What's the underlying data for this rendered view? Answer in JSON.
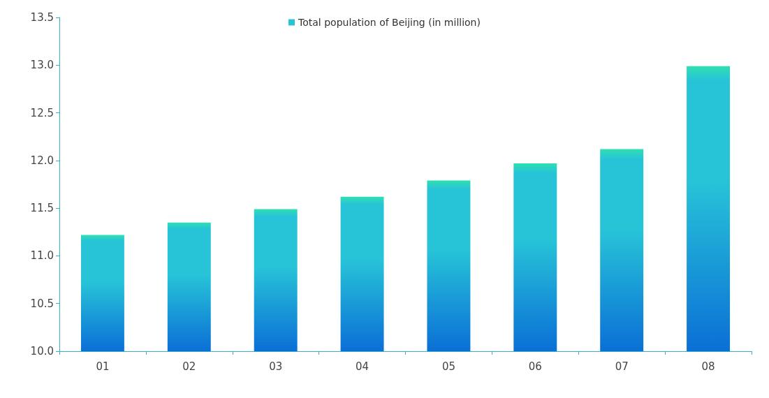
{
  "chart_data": {
    "type": "bar",
    "categories": [
      "01",
      "02",
      "03",
      "04",
      "05",
      "06",
      "07",
      "08"
    ],
    "series": [
      {
        "name": "Total population of Beijing (in million)",
        "color": "#27c4d8",
        "values": [
          11.22,
          11.35,
          11.49,
          11.62,
          11.79,
          11.97,
          12.12,
          12.99
        ]
      }
    ],
    "ylim": [
      10.0,
      13.5
    ],
    "yticks": [
      {
        "value": 10,
        "label": "10.0"
      },
      {
        "value": 10.5,
        "label": "10.5"
      },
      {
        "value": 11,
        "label": "11.0"
      },
      {
        "value": 11.5,
        "label": "11.5"
      },
      {
        "value": 12,
        "label": "12.0"
      },
      {
        "value": 12.5,
        "label": "12.5"
      },
      {
        "value": 13,
        "label": "13.0"
      },
      {
        "value": 13.5,
        "label": "13.5"
      }
    ],
    "grid": false,
    "legend": "top"
  }
}
